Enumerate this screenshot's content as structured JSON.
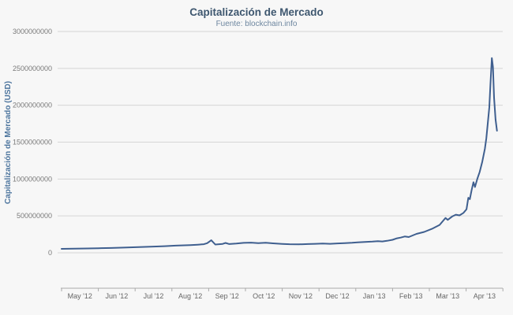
{
  "chart_data": {
    "type": "line",
    "title": "Capitalización de Mercado",
    "subtitle": "Fuente: blockchain.info",
    "xlabel": "",
    "ylabel": "Capitalización de Mercado (USD)",
    "x_tick_labels": [
      "May '12",
      "Jun '12",
      "Jul '12",
      "Aug '12",
      "Sep '12",
      "Oct '12",
      "Nov '12",
      "Dec '12",
      "Jan '13",
      "Feb '13",
      "Mar '13",
      "Apr '13"
    ],
    "y_tick_values": [
      0,
      500000000,
      1000000000,
      1500000000,
      2000000000,
      2500000000,
      3000000000
    ],
    "y_tick_labels": [
      "0",
      "500000000",
      "1000000000",
      "1500000000",
      "2000000000",
      "2500000000",
      "3000000000"
    ],
    "ylim": [
      0,
      3000000000
    ],
    "xlim_months": [
      0,
      12
    ],
    "grid": true,
    "legend": "none",
    "series": [
      {
        "name": "Capitalización de Mercado (USD)",
        "color": "#3f5f8f",
        "x_unit": "months_since_2012-05-01",
        "y_unit": "USD_millions",
        "points": [
          [
            0.0,
            53
          ],
          [
            0.35,
            56
          ],
          [
            0.7,
            59
          ],
          [
            1.0,
            62
          ],
          [
            1.35,
            65
          ],
          [
            1.7,
            70
          ],
          [
            2.1,
            77
          ],
          [
            2.5,
            84
          ],
          [
            2.8,
            90
          ],
          [
            3.1,
            97
          ],
          [
            3.5,
            105
          ],
          [
            3.7,
            110
          ],
          [
            3.87,
            116
          ],
          [
            3.96,
            130
          ],
          [
            4.07,
            170
          ],
          [
            4.18,
            112
          ],
          [
            4.38,
            121
          ],
          [
            4.46,
            133
          ],
          [
            4.56,
            119
          ],
          [
            4.75,
            125
          ],
          [
            4.95,
            134
          ],
          [
            5.15,
            138
          ],
          [
            5.35,
            131
          ],
          [
            5.55,
            136
          ],
          [
            5.75,
            128
          ],
          [
            6.0,
            121
          ],
          [
            6.2,
            116
          ],
          [
            6.45,
            114
          ],
          [
            6.7,
            119
          ],
          [
            6.9,
            122
          ],
          [
            7.1,
            125
          ],
          [
            7.3,
            122
          ],
          [
            7.5,
            127
          ],
          [
            7.7,
            131
          ],
          [
            7.9,
            136
          ],
          [
            8.05,
            141
          ],
          [
            8.25,
            147
          ],
          [
            8.45,
            152
          ],
          [
            8.6,
            158
          ],
          [
            8.72,
            154
          ],
          [
            8.85,
            162
          ],
          [
            9.0,
            176
          ],
          [
            9.12,
            196
          ],
          [
            9.22,
            206
          ],
          [
            9.33,
            221
          ],
          [
            9.44,
            213
          ],
          [
            9.65,
            256
          ],
          [
            9.86,
            283
          ],
          [
            10.07,
            325
          ],
          [
            10.28,
            378
          ],
          [
            10.4,
            448
          ],
          [
            10.44,
            472
          ],
          [
            10.5,
            446
          ],
          [
            10.62,
            492
          ],
          [
            10.72,
            517
          ],
          [
            10.82,
            507
          ],
          [
            10.93,
            541
          ],
          [
            11.01,
            590
          ],
          [
            11.06,
            746
          ],
          [
            11.1,
            727
          ],
          [
            11.15,
            851
          ],
          [
            11.2,
            957
          ],
          [
            11.24,
            891
          ],
          [
            11.31,
            1010
          ],
          [
            11.37,
            1096
          ],
          [
            11.44,
            1236
          ],
          [
            11.51,
            1411
          ],
          [
            11.55,
            1552
          ],
          [
            11.59,
            1762
          ],
          [
            11.63,
            1974
          ],
          [
            11.66,
            2282
          ],
          [
            11.7,
            2640
          ],
          [
            11.73,
            2520
          ],
          [
            11.76,
            2104
          ],
          [
            11.8,
            1806
          ],
          [
            11.84,
            1655
          ]
        ]
      }
    ]
  },
  "colors": {
    "background": "#f7f7f7",
    "title": "#3E576F",
    "subtitle": "#6D869F",
    "y_axis_title": "#4d759e",
    "gridline": "#d6d6d6",
    "axis_line": "#aaaaaa",
    "series": "#3f5f8f"
  }
}
